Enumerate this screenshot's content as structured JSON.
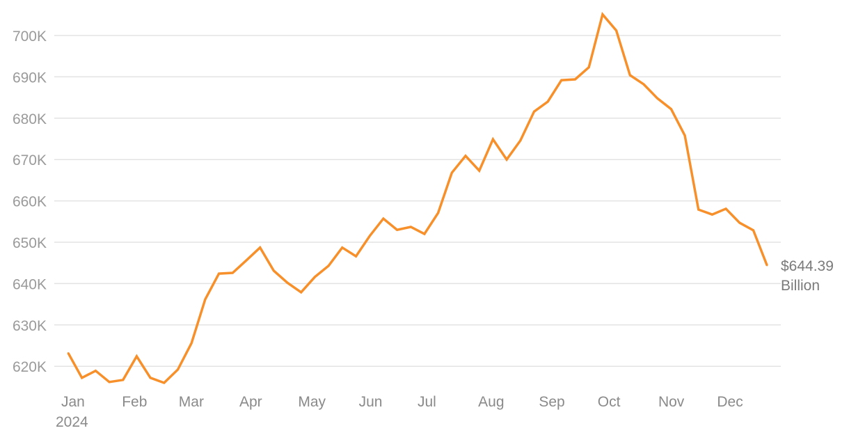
{
  "chart_data": {
    "type": "line",
    "title": "",
    "xlabel": "",
    "ylabel": "",
    "ylim": [
      615,
      705.5
    ],
    "grid": true,
    "y_ticks": [
      620,
      630,
      640,
      650,
      660,
      670,
      680,
      690,
      700
    ],
    "y_tick_labels": [
      "620K",
      "630K",
      "640K",
      "650K",
      "660K",
      "670K",
      "680K",
      "690K",
      "700K"
    ],
    "x_tick_labels": [
      "Jan",
      "Feb",
      "Mar",
      "Apr",
      "May",
      "Jun",
      "Jul",
      "Aug",
      "Sep",
      "Oct",
      "Nov",
      "Dec"
    ],
    "x_year_label": "2024",
    "line_color": "#f7902a",
    "series": [
      {
        "start_date": "2024-01-05",
        "interval": "weekly",
        "values": [
          623.2,
          617.2,
          618.9,
          616.2,
          616.7,
          622.4,
          617.2,
          616.0,
          619.2,
          625.6,
          636.2,
          642.4,
          642.6,
          645.6,
          648.7,
          643.1,
          640.2,
          637.9,
          641.6,
          644.3,
          648.7,
          646.6,
          651.5,
          655.7,
          653.0,
          653.7,
          652.0,
          657.1,
          666.8,
          670.9,
          667.3,
          674.9,
          670.0,
          674.6,
          681.6,
          684.0,
          689.2,
          689.4,
          692.3,
          705.1,
          701.2,
          690.4,
          688.2,
          684.8,
          682.2,
          675.8,
          657.9,
          656.7,
          658.1,
          654.7,
          652.9,
          644.39
        ]
      }
    ],
    "end_label": {
      "value": "$644.39",
      "unit": "Billion"
    }
  }
}
